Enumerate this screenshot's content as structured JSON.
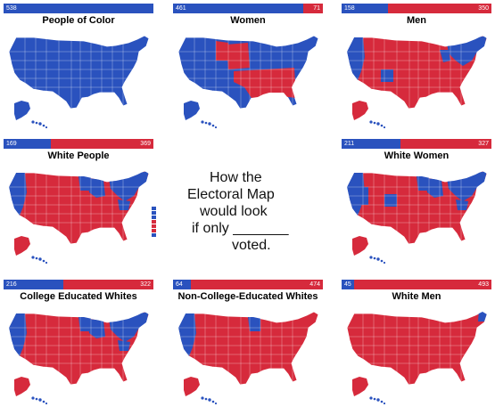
{
  "colors": {
    "blue": "#2a52be",
    "red": "#d62a3c"
  },
  "center_text": {
    "l1": "How the",
    "l2": "Electoral Map",
    "l3": "would look",
    "l4": "if only _______",
    "l5": "voted."
  },
  "panels": [
    {
      "title": "People of Color",
      "blue": 538,
      "red": null,
      "blue_label": "538",
      "red_label": ""
    },
    {
      "title": "Women",
      "blue": 461,
      "red": 71,
      "blue_label": "461",
      "red_label": "71"
    },
    {
      "title": "Men",
      "blue": 158,
      "red": 350,
      "blue_label": "158",
      "red_label": "350"
    },
    {
      "title": "White People",
      "blue": 169,
      "red": 369,
      "blue_label": "169",
      "red_label": "369"
    },
    {
      "title": "White Women",
      "blue": 211,
      "red": 327,
      "blue_label": "211",
      "red_label": "327"
    },
    {
      "title": "College Educated Whites",
      "blue": 216,
      "red": 322,
      "blue_label": "216",
      "red_label": "322"
    },
    {
      "title": "Non-College-Educated Whites",
      "blue": 64,
      "red": 474,
      "blue_label": "64",
      "red_label": "474"
    },
    {
      "title": "White Men",
      "blue": 45,
      "red": 493,
      "blue_label": "45",
      "red_label": "493"
    }
  ]
}
